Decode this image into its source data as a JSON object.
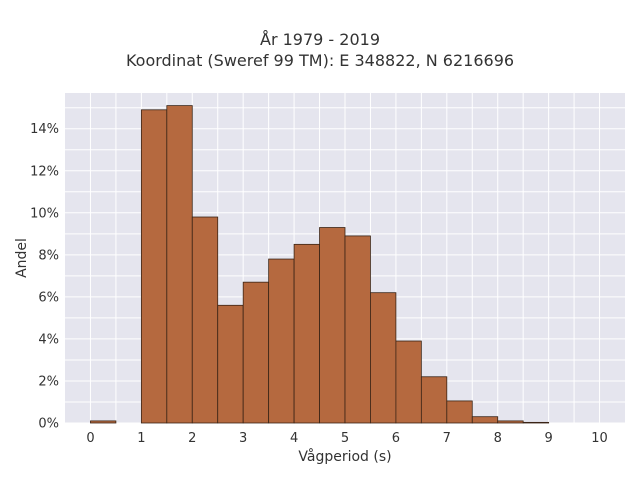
{
  "chart_data": {
    "type": "bar",
    "title_lines": [
      "År 1979 - 2019",
      "Koordinat (Sweref 99 TM): E 348822, N 6216696"
    ],
    "xlabel": "Vågperiod (s)",
    "ylabel": "Andel",
    "x_ticks": [
      "0",
      "1",
      "2",
      "3",
      "4",
      "5",
      "6",
      "7",
      "8",
      "9",
      "10"
    ],
    "y_ticks": [
      "0%",
      "2%",
      "4%",
      "6%",
      "8%",
      "10%",
      "12%",
      "14%"
    ],
    "xlim": [
      -0.5,
      10.5
    ],
    "ylim": [
      0,
      15.7
    ],
    "bin_width": 0.5,
    "bins": [
      {
        "x0": 0.0,
        "value": 0.1
      },
      {
        "x0": 0.5,
        "value": 0.0
      },
      {
        "x0": 1.0,
        "value": 14.9
      },
      {
        "x0": 1.5,
        "value": 15.1
      },
      {
        "x0": 2.0,
        "value": 9.8
      },
      {
        "x0": 2.5,
        "value": 5.6
      },
      {
        "x0": 3.0,
        "value": 6.7
      },
      {
        "x0": 3.5,
        "value": 7.8
      },
      {
        "x0": 4.0,
        "value": 8.5
      },
      {
        "x0": 4.5,
        "value": 9.3
      },
      {
        "x0": 5.0,
        "value": 8.9
      },
      {
        "x0": 5.5,
        "value": 6.2
      },
      {
        "x0": 6.0,
        "value": 3.9
      },
      {
        "x0": 6.5,
        "value": 2.2
      },
      {
        "x0": 7.0,
        "value": 1.05
      },
      {
        "x0": 7.5,
        "value": 0.3
      },
      {
        "x0": 8.0,
        "value": 0.1
      },
      {
        "x0": 8.5,
        "value": 0.03
      }
    ],
    "grid": true,
    "colors": {
      "bar_fill": "#b5693f",
      "bar_stroke": "#3a2416",
      "plot_bg": "#e5e5ee",
      "grid": "#ffffff",
      "text": "#333333"
    }
  }
}
